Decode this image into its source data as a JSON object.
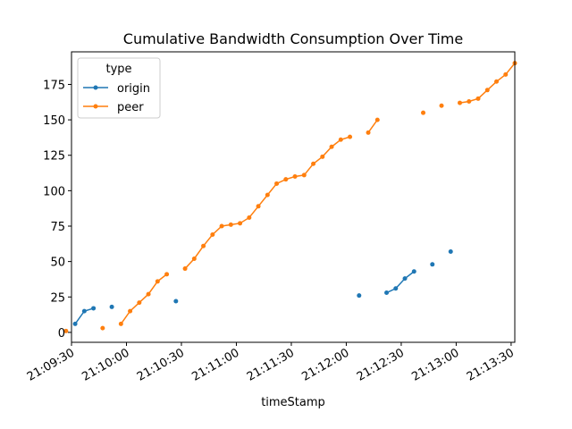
{
  "chart_data": {
    "type": "line",
    "title": "Cumulative Bandwidth Consumption Over Time",
    "xlabel": "timeStamp",
    "ylabel": "",
    "xlim": [
      "21:09:30",
      "21:13:32"
    ],
    "ylim": [
      -7,
      198
    ],
    "grid": false,
    "legend": {
      "title": "type",
      "placement": "top-left"
    },
    "x_ticks": [
      "21:09:30",
      "21:10:00",
      "21:10:30",
      "21:11:00",
      "21:11:30",
      "21:12:00",
      "21:12:30",
      "21:13:00",
      "21:13:30"
    ],
    "y_ticks": [
      0,
      25,
      50,
      75,
      100,
      125,
      150,
      175
    ],
    "series": [
      {
        "name": "origin",
        "color": "#1f77b4",
        "points": [
          [
            "21:09:32",
            6
          ],
          [
            "21:09:37",
            15
          ],
          [
            "21:09:42",
            17
          ],
          null,
          [
            "21:09:52",
            18
          ],
          null,
          [
            "21:10:27",
            22
          ],
          null,
          [
            "21:12:07",
            26
          ],
          null,
          [
            "21:12:22",
            28
          ],
          [
            "21:12:27",
            31
          ],
          [
            "21:12:32",
            38
          ],
          [
            "21:12:37",
            43
          ],
          null,
          [
            "21:12:47",
            48
          ],
          null,
          [
            "21:12:57",
            57
          ]
        ]
      },
      {
        "name": "peer",
        "color": "#ff7f0e",
        "points": [
          [
            "21:09:27",
            1
          ],
          null,
          [
            "21:09:47",
            3
          ],
          null,
          [
            "21:09:57",
            6
          ],
          [
            "21:10:02",
            15
          ],
          [
            "21:10:07",
            21
          ],
          [
            "21:10:12",
            27
          ],
          [
            "21:10:17",
            36
          ],
          [
            "21:10:22",
            41
          ],
          null,
          [
            "21:10:32",
            45
          ],
          [
            "21:10:37",
            52
          ],
          [
            "21:10:42",
            61
          ],
          [
            "21:10:47",
            69
          ],
          [
            "21:10:52",
            75
          ],
          [
            "21:10:57",
            76
          ],
          [
            "21:11:02",
            77
          ],
          [
            "21:11:07",
            81
          ],
          [
            "21:11:12",
            89
          ],
          [
            "21:11:17",
            97
          ],
          [
            "21:11:22",
            105
          ],
          [
            "21:11:27",
            108
          ],
          [
            "21:11:32",
            110
          ],
          [
            "21:11:37",
            111
          ],
          [
            "21:11:42",
            119
          ],
          [
            "21:11:47",
            124
          ],
          [
            "21:11:52",
            131
          ],
          [
            "21:11:57",
            136
          ],
          [
            "21:12:02",
            138
          ],
          null,
          [
            "21:12:12",
            141
          ],
          [
            "21:12:17",
            150
          ],
          null,
          [
            "21:12:42",
            155
          ],
          null,
          [
            "21:12:52",
            160
          ],
          null,
          [
            "21:13:02",
            162
          ],
          [
            "21:13:07",
            163
          ],
          [
            "21:13:12",
            165
          ],
          [
            "21:13:17",
            171
          ],
          [
            "21:13:22",
            177
          ],
          [
            "21:13:27",
            182
          ],
          [
            "21:13:32",
            190
          ]
        ]
      }
    ]
  }
}
